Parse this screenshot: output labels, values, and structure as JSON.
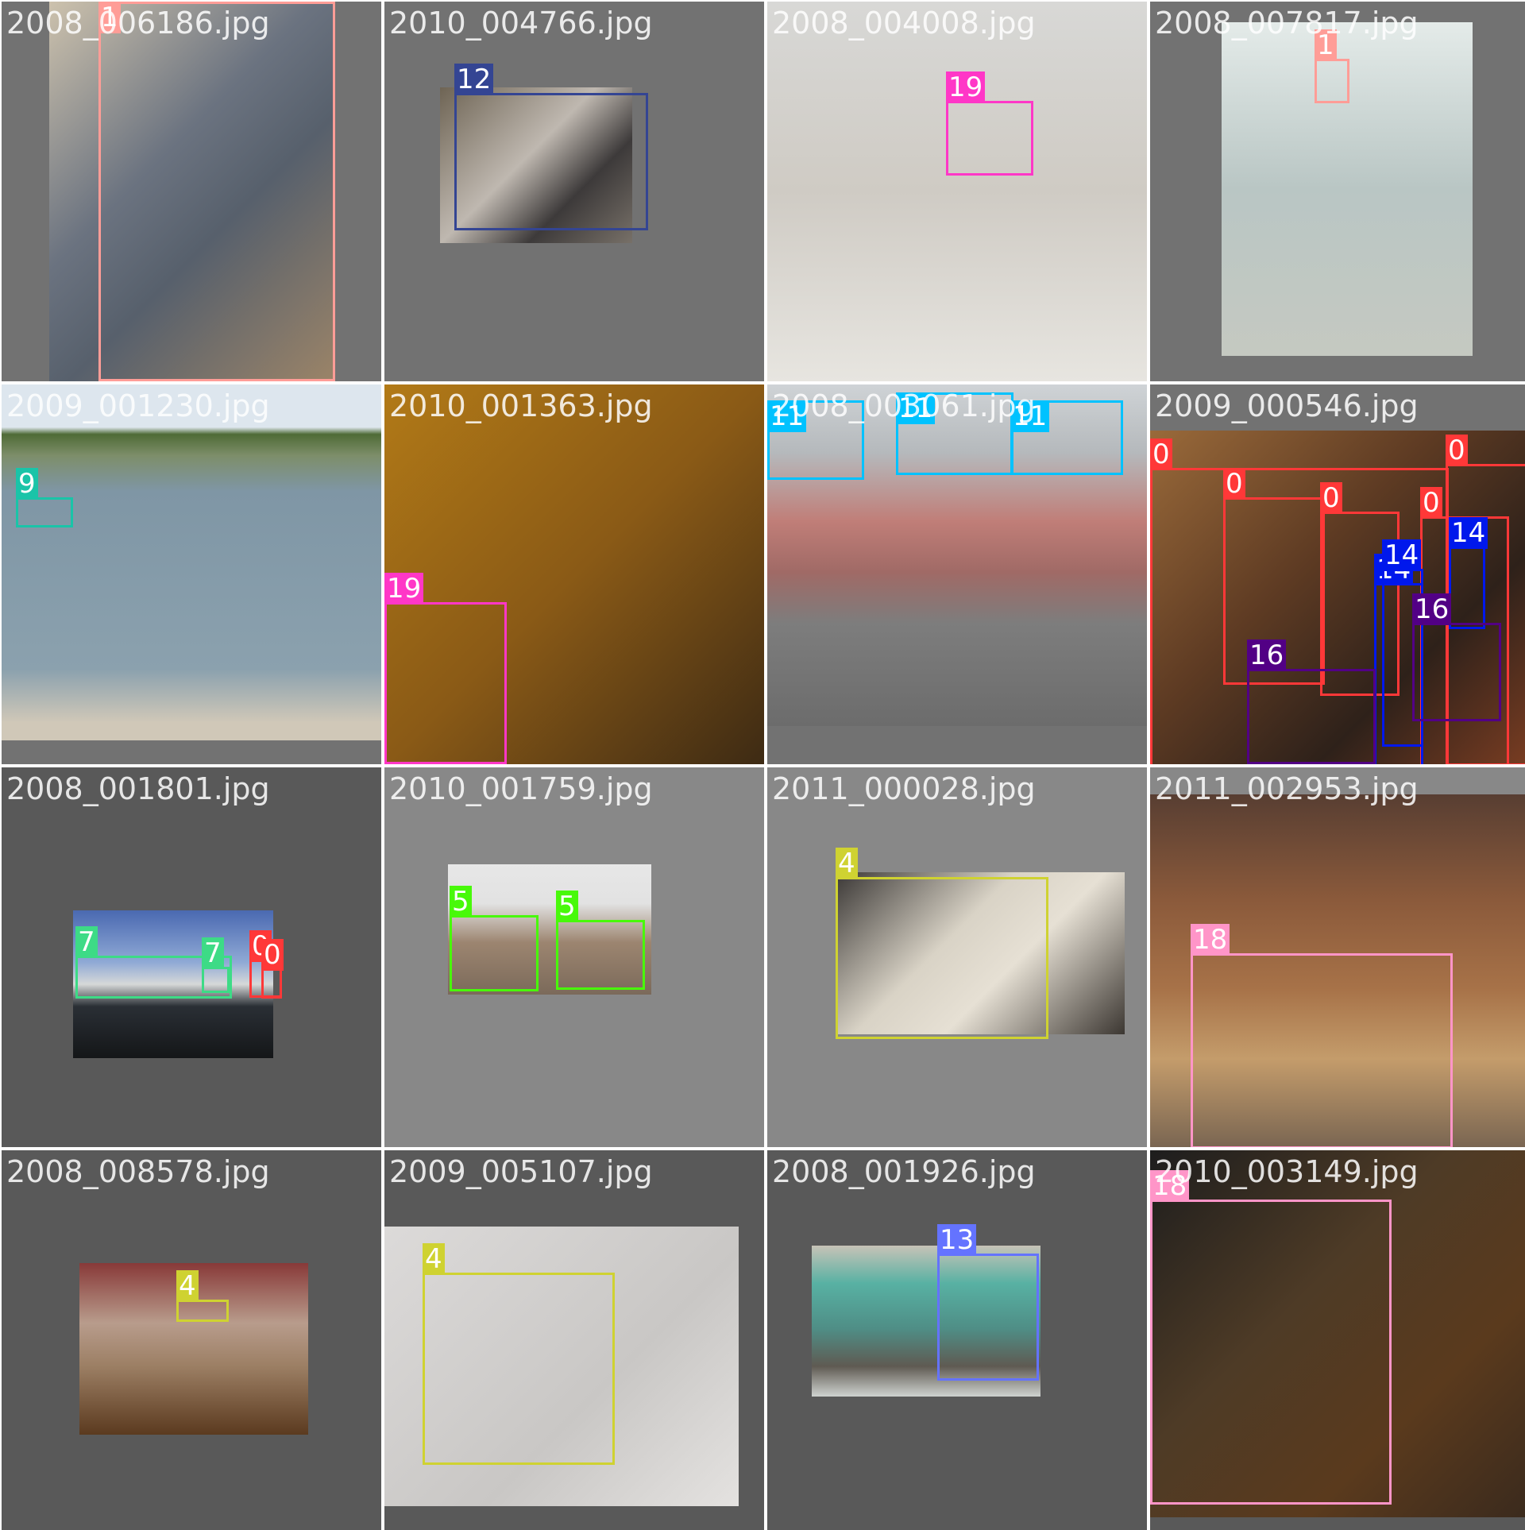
{
  "colors": {
    "0": "#ff3838",
    "1": "#ff9d97",
    "4": "#cfd231",
    "5": "#48f90a",
    "7": "#3ddb86",
    "9": "#1ac4a8",
    "11": "#00c2ff",
    "12": "#344593",
    "13": "#6473ff",
    "14": "#0018ec",
    "16": "#520085",
    "18": "#ff95c8",
    "19": "#ff37c7"
  },
  "tiles": [
    {
      "filename": "2008_006186.jpg",
      "labels": [
        "1"
      ]
    },
    {
      "filename": "2010_004766.jpg",
      "labels": [
        "12"
      ]
    },
    {
      "filename": "2008_004008.jpg",
      "labels": [
        "19"
      ]
    },
    {
      "filename": "2008_007817.jpg",
      "labels": [
        "1"
      ]
    },
    {
      "filename": "2009_001230.jpg",
      "labels": [
        "9"
      ]
    },
    {
      "filename": "2010_001363.jpg",
      "labels": [
        "19"
      ]
    },
    {
      "filename": "2008_003061.jpg",
      "labels": [
        "11",
        "11",
        "11"
      ]
    },
    {
      "filename": "2009_000546.jpg",
      "labels": [
        "0",
        "0",
        "0",
        "0",
        "0",
        "14",
        "14",
        "14",
        "16",
        "16"
      ]
    },
    {
      "filename": "2008_001801.jpg",
      "labels": [
        "7",
        "7",
        "0",
        "0"
      ]
    },
    {
      "filename": "2010_001759.jpg",
      "labels": [
        "5",
        "5"
      ]
    },
    {
      "filename": "2011_000028.jpg",
      "labels": [
        "4"
      ]
    },
    {
      "filename": "2011_002953.jpg",
      "labels": [
        "18"
      ]
    },
    {
      "filename": "2008_008578.jpg",
      "labels": [
        "4"
      ]
    },
    {
      "filename": "2009_005107.jpg",
      "labels": [
        "4"
      ]
    },
    {
      "filename": "2008_001926.jpg",
      "labels": [
        "13"
      ]
    },
    {
      "filename": "2010_003149.jpg",
      "labels": [
        "18"
      ]
    }
  ]
}
